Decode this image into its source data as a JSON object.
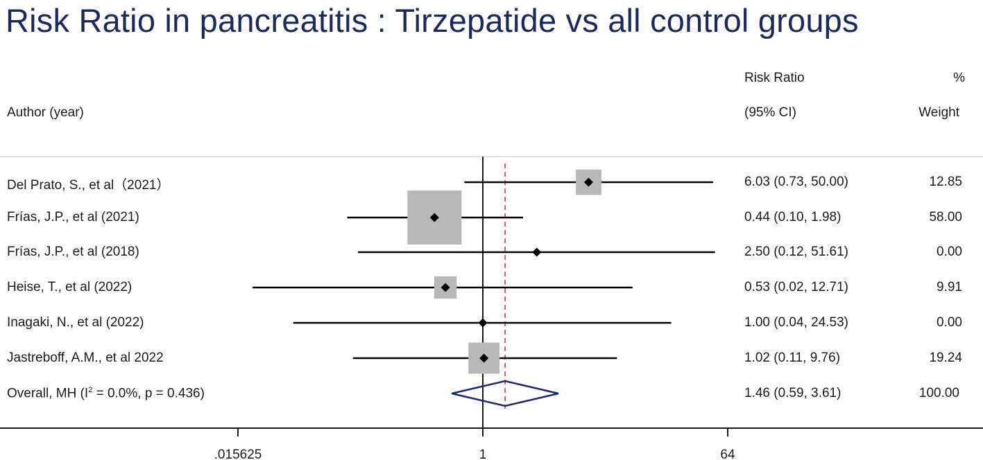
{
  "title": "Risk Ratio in pancreatitis : Tirzepatide vs  all control groups",
  "headers": {
    "author": "Author (year)",
    "rr_line1": "Risk Ratio",
    "rr_line2": "(95% CI)",
    "weight_line1": "%",
    "weight_line2": "Weight"
  },
  "overall_label": {
    "prefix": "Overall, MH (I",
    "sup": "2",
    "suffix": " = 0.0%, p = 0.436)"
  },
  "colors": {
    "title": "#1b2a5e",
    "box": "#b8b8b8",
    "diamond": "#1b2a6e",
    "null_line": "#c06070"
  },
  "chart_data": {
    "type": "forest",
    "scale": "log2",
    "xlim": [
      0.015625,
      64
    ],
    "ticks": [
      {
        "value": 0.015625,
        "label": ".015625"
      },
      {
        "value": 1,
        "label": "1"
      },
      {
        "value": 64,
        "label": "64"
      }
    ],
    "reference_line": 1,
    "overall_line": 1.46,
    "studies": [
      {
        "label": "Del Prato, S., et al（2021）",
        "rr": 6.03,
        "lo": 0.73,
        "hi": 50.0,
        "ci_text": "6.03 (0.73, 50.00)",
        "weight": 12.85,
        "weight_text": "12.85"
      },
      {
        "label": "Frías, J.P., et al (2021)",
        "rr": 0.44,
        "lo": 0.1,
        "hi": 1.98,
        "ci_text": "0.44 (0.10, 1.98)",
        "weight": 58.0,
        "weight_text": "58.00"
      },
      {
        "label": "Frías, J.P., et al (2018)",
        "rr": 2.5,
        "lo": 0.12,
        "hi": 51.61,
        "ci_text": "2.50 (0.12, 51.61)",
        "weight": 0.0,
        "weight_text": "0.00"
      },
      {
        "label": "Heise, T., et al (2022)",
        "rr": 0.53,
        "lo": 0.02,
        "hi": 12.71,
        "ci_text": "0.53 (0.02, 12.71)",
        "weight": 9.91,
        "weight_text": "9.91"
      },
      {
        "label": "Inagaki, N., et al (2022)",
        "rr": 1.0,
        "lo": 0.04,
        "hi": 24.53,
        "ci_text": "1.00 (0.04, 24.53)",
        "weight": 0.0,
        "weight_text": "0.00"
      },
      {
        "label": "Jastreboff, A.M., et al 2022",
        "rr": 1.02,
        "lo": 0.11,
        "hi": 9.76,
        "ci_text": "1.02 (0.11, 9.76)",
        "weight": 19.24,
        "weight_text": "19.24"
      }
    ],
    "overall": {
      "rr": 1.46,
      "lo": 0.59,
      "hi": 3.61,
      "ci_text": "1.46 (0.59, 3.61)",
      "weight_text": "100.00"
    }
  }
}
